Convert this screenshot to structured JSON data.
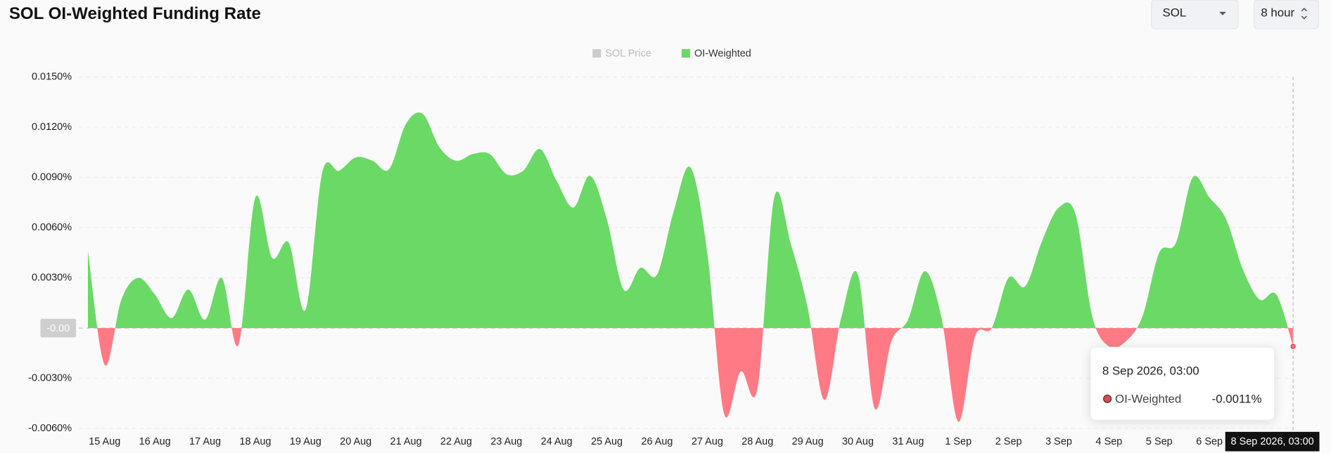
{
  "chart_data": {
    "type": "area",
    "title": "SOL OI-Weighted Funding Rate",
    "controls": {
      "asset": "SOL",
      "interval": "8 hour"
    },
    "categories": [
      null,
      "15 Aug",
      null,
      null,
      "16 Aug",
      null,
      null,
      "17 Aug",
      null,
      null,
      "18 Aug",
      null,
      null,
      "19 Aug",
      null,
      null,
      "20 Aug",
      null,
      null,
      "21 Aug",
      null,
      null,
      "22 Aug",
      null,
      null,
      "23 Aug",
      null,
      null,
      "24 Aug",
      null,
      null,
      "25 Aug",
      null,
      null,
      "26 Aug",
      null,
      null,
      "27 Aug",
      null,
      null,
      "28 Aug",
      null,
      null,
      "29 Aug",
      null,
      null,
      "30 Aug",
      null,
      null,
      "31 Aug",
      null,
      null,
      "1 Sep",
      null,
      null,
      "2 Sep",
      null,
      null,
      "3 Sep",
      null,
      null,
      "4 Sep",
      null,
      null,
      "5 Sep",
      null,
      null,
      "6 Sep",
      null,
      null,
      null,
      null,
      "8 Sep 2026, 03:00"
    ],
    "series": [
      {
        "name": "SOL Price",
        "color": "#cccccc",
        "visible": false
      },
      {
        "name": "OI-Weighted",
        "color": "#6bd966",
        "negative_color": "#ff7a85",
        "values": [
          0.0046,
          -0.0022,
          0.0017,
          0.003,
          0.002,
          0.0006,
          0.0023,
          0.0005,
          0.003,
          -0.001,
          0.0078,
          0.0042,
          0.0051,
          0.0011,
          0.0093,
          0.0094,
          0.0102,
          0.01,
          0.0095,
          0.0122,
          0.0128,
          0.0108,
          0.01,
          0.0104,
          0.0104,
          0.0092,
          0.0094,
          0.0107,
          0.0088,
          0.0072,
          0.0091,
          0.0065,
          0.0023,
          0.0036,
          0.0032,
          0.007,
          0.0096,
          0.0045,
          -0.0051,
          -0.0026,
          -0.0036,
          0.0078,
          0.005,
          0.0012,
          -0.0043,
          0.0006,
          0.0032,
          -0.0048,
          -0.0008,
          0.0005,
          0.0034,
          0.0006,
          -0.0056,
          -0.0005,
          0.0,
          0.003,
          0.0025,
          0.0052,
          0.0072,
          0.0068,
          0.0007,
          -0.0011,
          -0.0008,
          0.0007,
          0.0045,
          0.0051,
          0.009,
          0.0078,
          0.0065,
          0.0035,
          0.0017,
          0.002,
          -0.0011
        ]
      }
    ],
    "ylim": [
      -0.006,
      0.015
    ],
    "yticks": [
      {
        "value": 0.015,
        "label": "0.0150%"
      },
      {
        "value": 0.012,
        "label": "0.0120%"
      },
      {
        "value": 0.009,
        "label": "0.0090%"
      },
      {
        "value": 0.006,
        "label": "0.0060%"
      },
      {
        "value": 0.003,
        "label": "0.0030%"
      },
      {
        "value": 0,
        "label": "-0.00"
      },
      {
        "value": -0.003,
        "label": "-0.0030%"
      },
      {
        "value": -0.006,
        "label": "-0.0060%"
      }
    ],
    "grid": true,
    "legend": "top",
    "tooltip": {
      "series": "OI-Weighted",
      "value_label": "-0.0011%"
    }
  }
}
